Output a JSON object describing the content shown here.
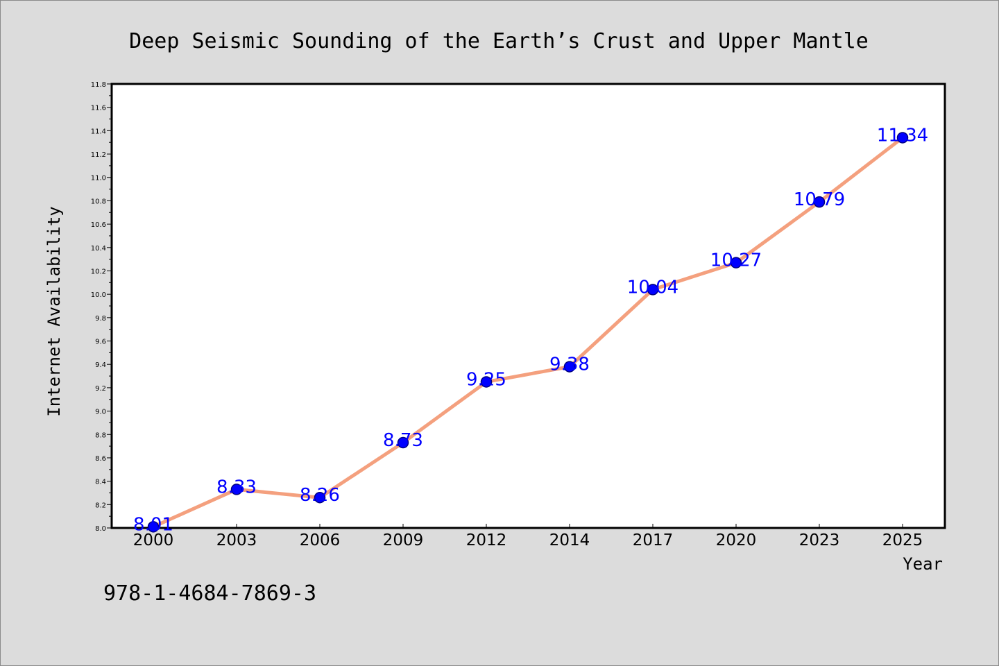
{
  "isbn": "978-1-4684-7869-3",
  "colors": {
    "background": "#dcdcdc",
    "plot_background": "#ffffff",
    "line": "#f4a07e",
    "marker_fill": "#0000ff",
    "marker_edge": "#000080",
    "data_label": "#0000ff"
  },
  "chart_data": {
    "type": "line",
    "title": "Deep Seismic Sounding of the Earth’s Crust and Upper Mantle",
    "xlabel": "Year",
    "ylabel": "Internet Availability",
    "categories": [
      "2000",
      "2003",
      "2006",
      "2009",
      "2012",
      "2014",
      "2017",
      "2020",
      "2023",
      "2025"
    ],
    "series": [
      {
        "values": [
          8.01,
          8.33,
          8.26,
          8.73,
          9.25,
          9.38,
          10.04,
          10.27,
          10.79,
          11.34
        ]
      }
    ],
    "data_labels": [
      "8.01",
      "8.33",
      "8.26",
      "8.73",
      "9.25",
      "9.38",
      "10.04",
      "10.27",
      "10.79",
      "11.34"
    ],
    "ylim": [
      8.0,
      11.8
    ],
    "yticks": [
      "8.0",
      "8.2",
      "8.4",
      "8.6",
      "8.8",
      "9.0",
      "9.2",
      "9.4",
      "9.6",
      "9.8",
      "10.0",
      "10.2",
      "10.4",
      "10.6",
      "10.8",
      "11.0",
      "11.2",
      "11.4",
      "11.6",
      "11.8"
    ],
    "grid": false,
    "legend": "none"
  }
}
